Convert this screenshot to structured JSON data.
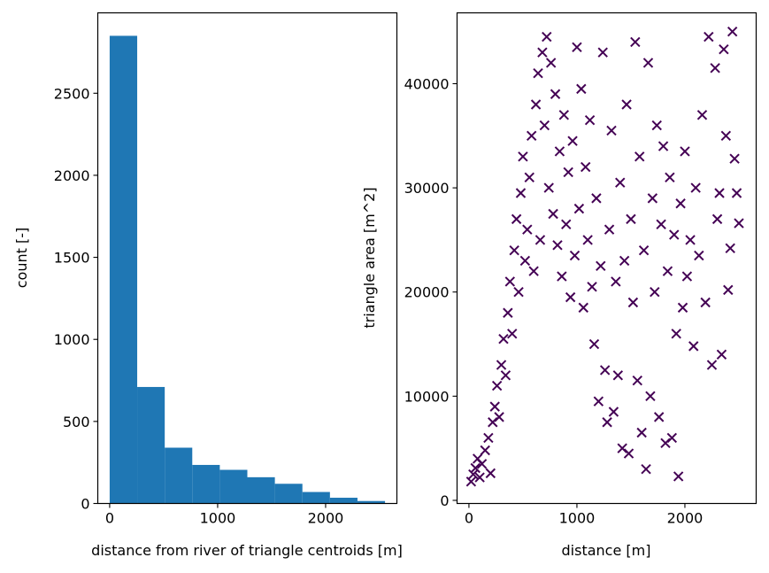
{
  "colors": {
    "bar_fill": "#1f77b4",
    "marker": "#440154",
    "axis": "#000000",
    "background": "#ffffff"
  },
  "chart_data": [
    {
      "type": "bar",
      "subtype": "histogram",
      "xlabel": "distance from river of triangle centroids [m]",
      "ylabel": "count [-]",
      "xlim": [
        -110,
        2660
      ],
      "ylim": [
        0,
        2990
      ],
      "xticks": [
        0,
        1000,
        2000
      ],
      "yticks": [
        0,
        500,
        1000,
        1500,
        2000,
        2500
      ],
      "bin_edges": [
        0,
        255,
        510,
        765,
        1020,
        1275,
        1530,
        1785,
        2040,
        2295,
        2550
      ],
      "values": [
        2850,
        710,
        340,
        235,
        205,
        160,
        120,
        70,
        35,
        15
      ]
    },
    {
      "type": "scatter",
      "marker": "x",
      "xlabel": "distance [m]",
      "ylabel": "triangle area [m^2]",
      "xlim": [
        -110,
        2660
      ],
      "ylim": [
        -300,
        46800
      ],
      "xticks": [
        0,
        1000,
        2000
      ],
      "yticks": [
        0,
        10000,
        20000,
        30000,
        40000
      ],
      "points": [
        [
          20,
          1800
        ],
        [
          40,
          2500
        ],
        [
          60,
          3100
        ],
        [
          80,
          4000
        ],
        [
          100,
          2200
        ],
        [
          120,
          3500
        ],
        [
          150,
          4800
        ],
        [
          180,
          6000
        ],
        [
          200,
          2600
        ],
        [
          220,
          7500
        ],
        [
          240,
          9000
        ],
        [
          260,
          11000
        ],
        [
          280,
          8000
        ],
        [
          300,
          13000
        ],
        [
          320,
          15500
        ],
        [
          340,
          12000
        ],
        [
          360,
          18000
        ],
        [
          380,
          21000
        ],
        [
          400,
          16000
        ],
        [
          420,
          24000
        ],
        [
          440,
          27000
        ],
        [
          460,
          20000
        ],
        [
          480,
          29500
        ],
        [
          500,
          33000
        ],
        [
          520,
          23000
        ],
        [
          540,
          26000
        ],
        [
          560,
          31000
        ],
        [
          580,
          35000
        ],
        [
          600,
          22000
        ],
        [
          620,
          38000
        ],
        [
          640,
          41000
        ],
        [
          660,
          25000
        ],
        [
          680,
          43000
        ],
        [
          700,
          36000
        ],
        [
          720,
          44500
        ],
        [
          740,
          30000
        ],
        [
          760,
          42000
        ],
        [
          780,
          27500
        ],
        [
          800,
          39000
        ],
        [
          820,
          24500
        ],
        [
          840,
          33500
        ],
        [
          860,
          21500
        ],
        [
          880,
          37000
        ],
        [
          900,
          26500
        ],
        [
          920,
          31500
        ],
        [
          940,
          19500
        ],
        [
          960,
          34500
        ],
        [
          980,
          23500
        ],
        [
          1000,
          43500
        ],
        [
          1020,
          28000
        ],
        [
          1040,
          39500
        ],
        [
          1060,
          18500
        ],
        [
          1080,
          32000
        ],
        [
          1100,
          25000
        ],
        [
          1120,
          36500
        ],
        [
          1140,
          20500
        ],
        [
          1160,
          15000
        ],
        [
          1180,
          29000
        ],
        [
          1200,
          9500
        ],
        [
          1220,
          22500
        ],
        [
          1240,
          43000
        ],
        [
          1260,
          12500
        ],
        [
          1280,
          7500
        ],
        [
          1300,
          26000
        ],
        [
          1320,
          35500
        ],
        [
          1340,
          8500
        ],
        [
          1360,
          21000
        ],
        [
          1380,
          12000
        ],
        [
          1400,
          30500
        ],
        [
          1420,
          5000
        ],
        [
          1440,
          23000
        ],
        [
          1460,
          38000
        ],
        [
          1480,
          4500
        ],
        [
          1500,
          27000
        ],
        [
          1520,
          19000
        ],
        [
          1540,
          44000
        ],
        [
          1560,
          11500
        ],
        [
          1580,
          33000
        ],
        [
          1600,
          6500
        ],
        [
          1620,
          24000
        ],
        [
          1640,
          3000
        ],
        [
          1660,
          42000
        ],
        [
          1680,
          10000
        ],
        [
          1700,
          29000
        ],
        [
          1720,
          20000
        ],
        [
          1740,
          36000
        ],
        [
          1760,
          8000
        ],
        [
          1780,
          26500
        ],
        [
          1800,
          34000
        ],
        [
          1820,
          5500
        ],
        [
          1840,
          22000
        ],
        [
          1860,
          31000
        ],
        [
          1880,
          6000
        ],
        [
          1900,
          25500
        ],
        [
          1920,
          16000
        ],
        [
          1940,
          2300
        ],
        [
          1960,
          28500
        ],
        [
          1980,
          18500
        ],
        [
          2000,
          33500
        ],
        [
          2020,
          21500
        ],
        [
          2050,
          25000
        ],
        [
          2080,
          14800
        ],
        [
          2100,
          30000
        ],
        [
          2130,
          23500
        ],
        [
          2160,
          37000
        ],
        [
          2190,
          19000
        ],
        [
          2220,
          44500
        ],
        [
          2250,
          13000
        ],
        [
          2280,
          41500
        ],
        [
          2300,
          27000
        ],
        [
          2320,
          29500
        ],
        [
          2340,
          14000
        ],
        [
          2360,
          43300
        ],
        [
          2380,
          35000
        ],
        [
          2400,
          20200
        ],
        [
          2420,
          24200
        ],
        [
          2440,
          45000
        ],
        [
          2460,
          32800
        ],
        [
          2480,
          29500
        ],
        [
          2500,
          26600
        ]
      ]
    }
  ]
}
